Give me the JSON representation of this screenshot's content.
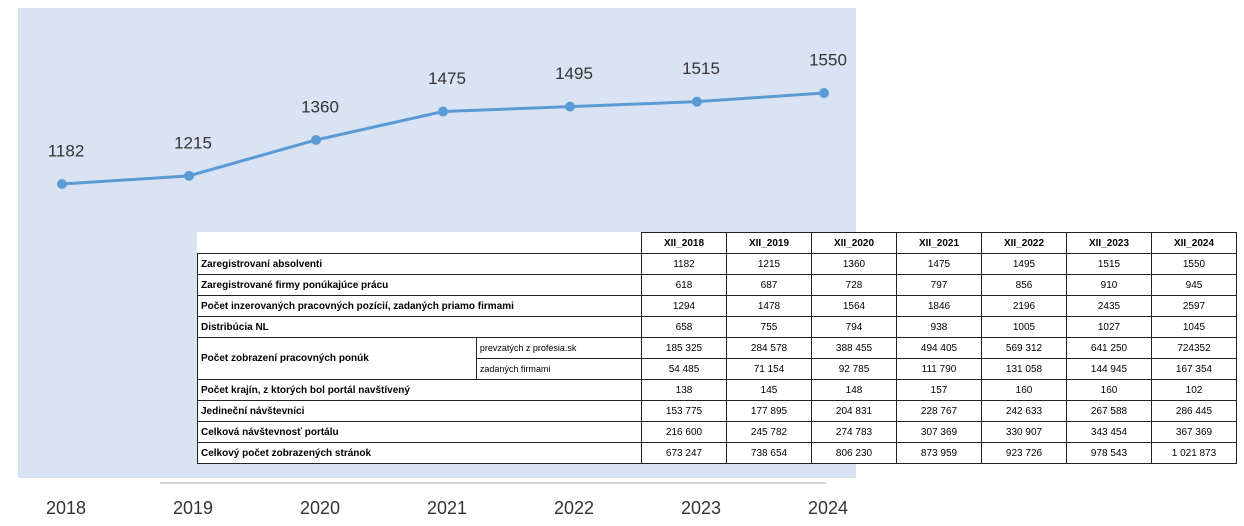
{
  "chart_data": {
    "type": "line",
    "categories": [
      "2018",
      "2019",
      "2020",
      "2021",
      "2022",
      "2023",
      "2024"
    ],
    "values": [
      1182,
      1215,
      1360,
      1475,
      1495,
      1515,
      1550
    ],
    "color": "#5b9bd5"
  },
  "table": {
    "header": [
      "XII_2018",
      "XII_2019",
      "XII_2020",
      "XII_2021",
      "XII_2022",
      "XII_2023",
      "XII_2024"
    ],
    "rows": [
      {
        "label": "Zaregistrovaní absolventi",
        "cells": [
          "1182",
          "1215",
          "1360",
          "1475",
          "1495",
          "1515",
          "1550"
        ]
      },
      {
        "label": "Zaregistrované firmy ponúkajúce prácu",
        "cells": [
          "618",
          "687",
          "728",
          "797",
          "856",
          "910",
          "945"
        ]
      },
      {
        "label": "Počet inzerovaných pracovných pozícií, zadaných priamo firmami",
        "cells": [
          "1294",
          "1478",
          "1564",
          "1846",
          "2196",
          "2435",
          "2597"
        ]
      },
      {
        "label": "Distribúcia NL",
        "cells": [
          "658",
          "755",
          "794",
          "938",
          "1005",
          "1027",
          "1045"
        ]
      },
      {
        "label": "Počet zobrazení pracovných ponúk",
        "subrows": [
          {
            "label": "prevzatých z profesia.sk",
            "cells": [
              "185 325",
              "284 578",
              "388 455",
              "494 405",
              "569 312",
              "641 250",
              "724352"
            ]
          },
          {
            "label": "zadaných firmami",
            "cells": [
              "54 485",
              "71 154",
              "92 785",
              "111 790",
              "131 058",
              "144 945",
              "167 354"
            ]
          }
        ]
      },
      {
        "label": "Počet krajín, z ktorých bol portál navštívený",
        "cells": [
          "138",
          "145",
          "148",
          "157",
          "160",
          "160",
          "102"
        ]
      },
      {
        "label": "Jedineční návštevníci",
        "cells": [
          "153 775",
          "177 895",
          "204 831",
          "228 767",
          "242 633",
          "267 588",
          "286 445"
        ]
      },
      {
        "label": "Celková návštevnosť portálu",
        "cells": [
          "216 600",
          "245 782",
          "274 783",
          "307 369",
          "330 907",
          "343 454",
          "367 369"
        ]
      },
      {
        "label": "Celkový počet zobrazených stránok",
        "cells": [
          "673 247",
          "738 654",
          "806 230",
          "873 959",
          "923 726",
          "978 543",
          "1 021 873"
        ]
      }
    ]
  }
}
